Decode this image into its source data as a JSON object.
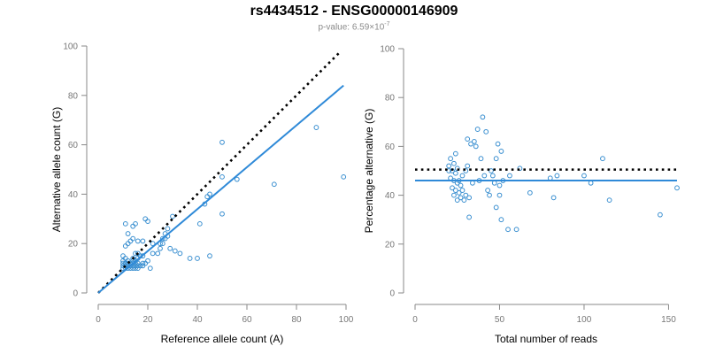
{
  "header": {
    "title": "rs4434512 - ENSG00000146909",
    "pvalue_prefix": "p-value: 6.59×10",
    "pvalue_exponent": "-7"
  },
  "chart_data": [
    {
      "type": "scatter",
      "xlabel": "Reference allele count (A)",
      "ylabel": "Alternative allele count (G)",
      "xlim": [
        0,
        100
      ],
      "ylim": [
        0,
        100
      ],
      "xticks": [
        0,
        20,
        40,
        60,
        80,
        100
      ],
      "yticks": [
        0,
        20,
        40,
        60,
        80,
        100
      ],
      "point_color": "#3a8fd0",
      "points": [
        [
          10,
          10
        ],
        [
          10,
          11
        ],
        [
          10,
          12
        ],
        [
          10,
          13
        ],
        [
          10,
          15
        ],
        [
          11,
          10
        ],
        [
          11,
          11
        ],
        [
          11,
          12
        ],
        [
          11,
          14
        ],
        [
          11,
          19
        ],
        [
          11,
          28
        ],
        [
          12,
          10
        ],
        [
          12,
          11
        ],
        [
          12,
          12
        ],
        [
          12,
          13
        ],
        [
          12,
          20
        ],
        [
          12,
          24
        ],
        [
          13,
          10
        ],
        [
          13,
          11
        ],
        [
          13,
          12
        ],
        [
          13,
          21
        ],
        [
          14,
          10
        ],
        [
          14,
          11
        ],
        [
          14,
          12
        ],
        [
          14,
          13
        ],
        [
          14,
          14
        ],
        [
          14,
          22
        ],
        [
          14,
          27
        ],
        [
          15,
          10
        ],
        [
          15,
          11
        ],
        [
          15,
          12
        ],
        [
          15,
          13
        ],
        [
          15,
          16
        ],
        [
          15,
          28
        ],
        [
          16,
          10
        ],
        [
          16,
          11
        ],
        [
          16,
          12
        ],
        [
          16,
          14
        ],
        [
          16,
          16
        ],
        [
          16,
          21
        ],
        [
          17,
          11
        ],
        [
          17,
          15
        ],
        [
          18,
          11
        ],
        [
          18,
          12
        ],
        [
          18,
          15
        ],
        [
          18,
          21
        ],
        [
          19,
          12
        ],
        [
          19,
          30
        ],
        [
          20,
          13
        ],
        [
          20,
          29
        ],
        [
          21,
          10
        ],
        [
          22,
          16
        ],
        [
          22,
          20
        ],
        [
          24,
          16
        ],
        [
          25,
          18
        ],
        [
          25,
          20
        ],
        [
          26,
          20
        ],
        [
          26,
          22
        ],
        [
          27,
          22
        ],
        [
          27,
          24
        ],
        [
          28,
          23
        ],
        [
          28,
          26
        ],
        [
          29,
          18
        ],
        [
          30,
          31
        ],
        [
          31,
          17
        ],
        [
          33,
          16
        ],
        [
          37,
          14
        ],
        [
          40,
          14
        ],
        [
          41,
          28
        ],
        [
          43,
          36
        ],
        [
          44,
          39
        ],
        [
          45,
          15
        ],
        [
          45,
          40
        ],
        [
          50,
          32
        ],
        [
          50,
          47
        ],
        [
          50,
          61
        ],
        [
          56,
          46
        ],
        [
          71,
          44
        ],
        [
          88,
          67
        ],
        [
          99,
          47
        ]
      ],
      "fit_line": {
        "color": "#2f8ad8",
        "x": [
          0,
          99
        ],
        "y": [
          0,
          84
        ]
      },
      "reference_line": {
        "color": "#000000",
        "style": "dotted",
        "x": [
          0,
          98
        ],
        "y": [
          0,
          98
        ]
      }
    },
    {
      "type": "scatter",
      "xlabel": "Total number of reads",
      "ylabel": "Percentage alternative (G)",
      "xlim": [
        0,
        155
      ],
      "ylim": [
        0,
        100
      ],
      "xticks": [
        0,
        50,
        100,
        150
      ],
      "yticks": [
        0,
        20,
        40,
        60,
        80,
        100
      ],
      "point_color": "#3a8fd0",
      "points": [
        [
          20,
          50
        ],
        [
          20,
          52
        ],
        [
          21,
          47
        ],
        [
          21,
          55
        ],
        [
          22,
          43
        ],
        [
          22,
          50
        ],
        [
          23,
          40
        ],
        [
          23,
          46
        ],
        [
          23,
          53
        ],
        [
          24,
          42
        ],
        [
          24,
          49
        ],
        [
          24,
          57
        ],
        [
          25,
          38
        ],
        [
          25,
          45
        ],
        [
          25,
          51
        ],
        [
          26,
          41
        ],
        [
          26,
          46
        ],
        [
          27,
          39
        ],
        [
          27,
          44
        ],
        [
          28,
          42
        ],
        [
          28,
          48
        ],
        [
          29,
          38
        ],
        [
          30,
          40
        ],
        [
          30,
          50
        ],
        [
          31,
          52
        ],
        [
          31,
          63
        ],
        [
          32,
          31
        ],
        [
          32,
          39
        ],
        [
          33,
          61
        ],
        [
          34,
          45
        ],
        [
          35,
          62
        ],
        [
          36,
          60
        ],
        [
          37,
          67
        ],
        [
          38,
          46
        ],
        [
          39,
          55
        ],
        [
          40,
          72
        ],
        [
          41,
          48
        ],
        [
          42,
          66
        ],
        [
          43,
          42
        ],
        [
          44,
          40
        ],
        [
          45,
          50
        ],
        [
          46,
          48
        ],
        [
          47,
          45
        ],
        [
          48,
          35
        ],
        [
          48,
          55
        ],
        [
          49,
          61
        ],
        [
          50,
          44
        ],
        [
          50,
          40
        ],
        [
          51,
          30
        ],
        [
          51,
          58
        ],
        [
          52,
          46
        ],
        [
          55,
          26
        ],
        [
          56,
          48
        ],
        [
          60,
          26
        ],
        [
          62,
          51
        ],
        [
          68,
          41
        ],
        [
          80,
          47
        ],
        [
          82,
          39
        ],
        [
          84,
          48
        ],
        [
          100,
          48
        ],
        [
          104,
          45
        ],
        [
          111,
          55
        ],
        [
          115,
          38
        ],
        [
          145,
          32
        ],
        [
          155,
          43
        ]
      ],
      "fit_line": {
        "color": "#2f8ad8",
        "x": [
          0,
          155
        ],
        "y": [
          46,
          46
        ]
      },
      "reference_line": {
        "color": "#000000",
        "style": "dotted",
        "x": [
          0,
          155
        ],
        "y": [
          50.5,
          50.5
        ]
      }
    }
  ]
}
